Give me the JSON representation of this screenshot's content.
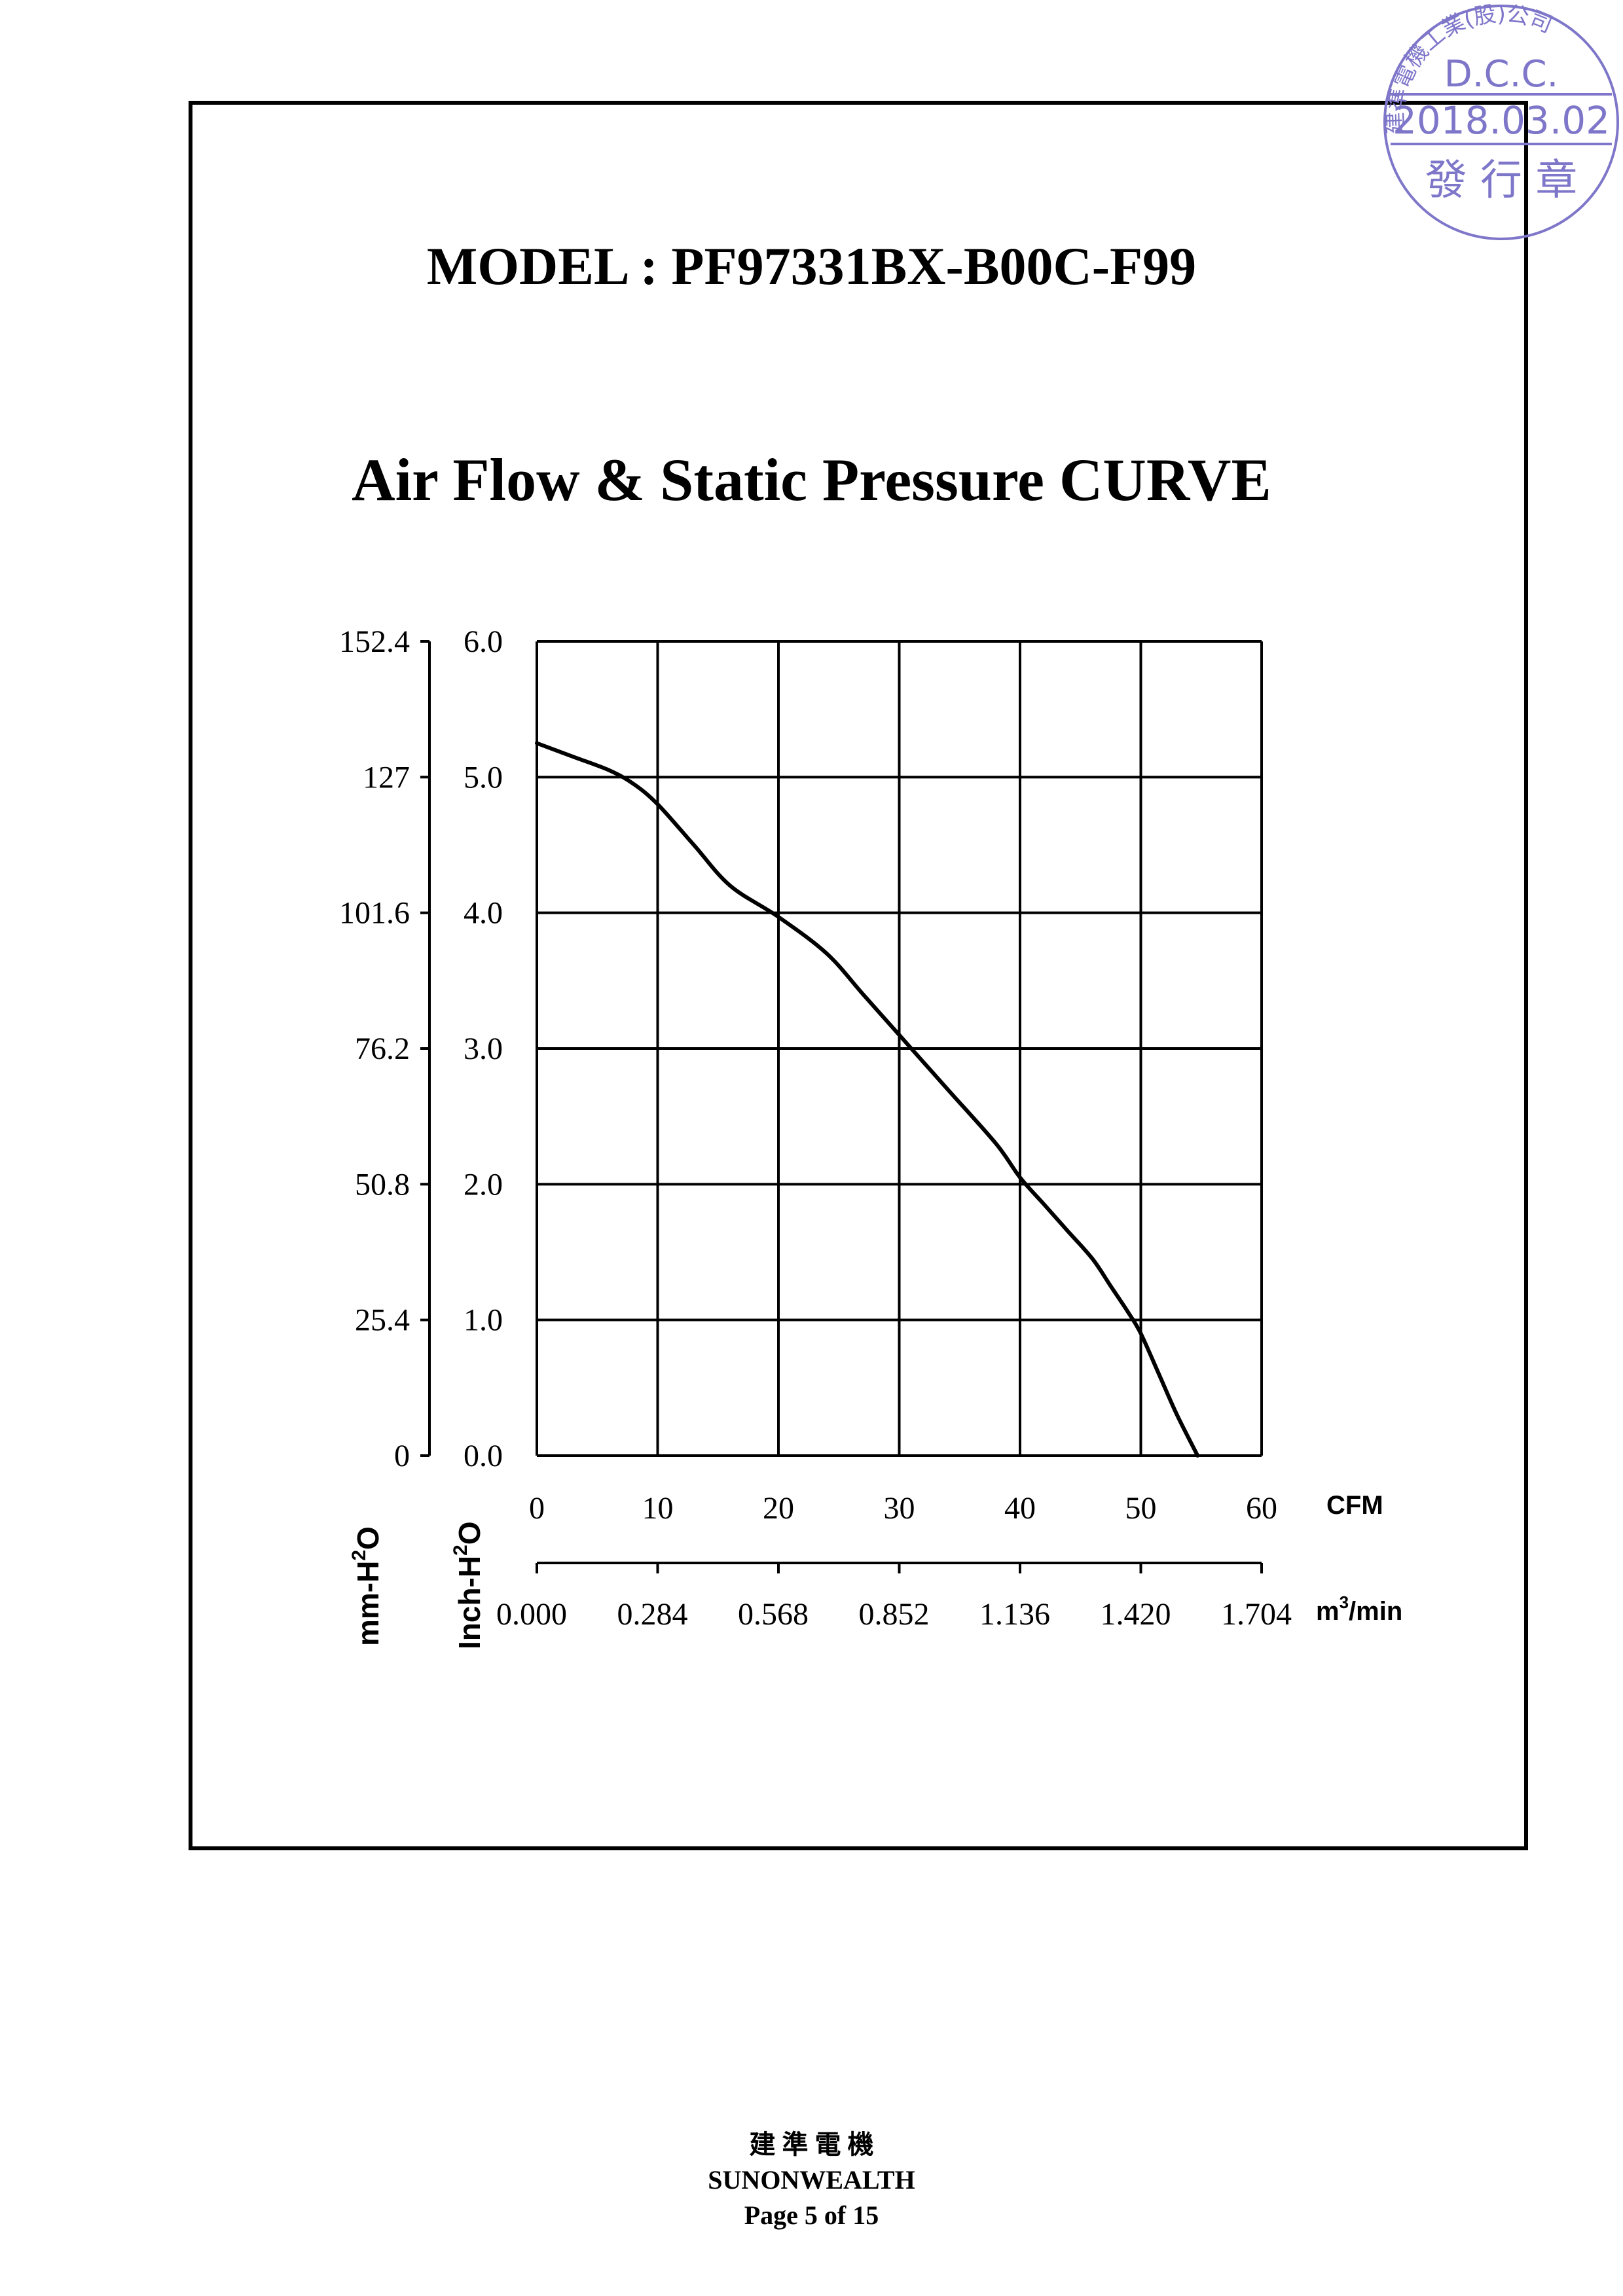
{
  "header": {
    "model_title": "MODEL : PF97331BX-B00C-F99",
    "curve_title": "Air Flow & Static Pressure CURVE"
  },
  "chart_data": {
    "type": "line",
    "title": "Air Flow & Static Pressure CURVE",
    "x_primary": {
      "unit": "CFM",
      "range": [
        0,
        60
      ],
      "ticks": [
        "0",
        "10",
        "20",
        "30",
        "40",
        "50",
        "60"
      ]
    },
    "x_secondary": {
      "unit": "m",
      "unit_sup": "3",
      "unit_tail": "/min",
      "ticks": [
        "0.000",
        "0.284",
        "0.568",
        "0.852",
        "1.136",
        "1.420",
        "1.704"
      ]
    },
    "y_primary": {
      "unit": "Inch-H",
      "unit_sup": "2",
      "unit_tail": "O",
      "range": [
        0,
        6
      ],
      "ticks": [
        "0.0",
        "1.0",
        "2.0",
        "3.0",
        "4.0",
        "5.0",
        "6.0"
      ]
    },
    "y_secondary": {
      "unit": "mm-H",
      "unit_sup": "2",
      "unit_tail": "O",
      "ticks": [
        "0",
        "25.4",
        "50.8",
        "76.2",
        "101.6",
        "127",
        "152.4"
      ]
    },
    "grid": true,
    "series": [
      {
        "x": [
          0,
          3,
          6,
          8,
          10,
          13,
          16,
          20,
          24,
          27,
          30,
          34,
          38,
          40,
          42,
          44,
          46,
          47.5,
          49,
          50,
          51.5,
          53,
          54.7
        ],
        "y": [
          5.25,
          5.15,
          5.05,
          4.95,
          4.8,
          4.5,
          4.2,
          3.97,
          3.7,
          3.4,
          3.1,
          2.7,
          2.3,
          2.05,
          1.85,
          1.65,
          1.45,
          1.25,
          1.05,
          0.9,
          0.6,
          0.3,
          0.0
        ]
      }
    ]
  },
  "stamp": {
    "arc_text": "建準電機工業(股)公司",
    "dept": "D.C.C.",
    "date": "2018.03.02",
    "label": "發 行 章"
  },
  "footer": {
    "company_cn": "建 準 電 機",
    "company_en": "SUNONWEALTH",
    "page": "Page 5 of 15"
  }
}
